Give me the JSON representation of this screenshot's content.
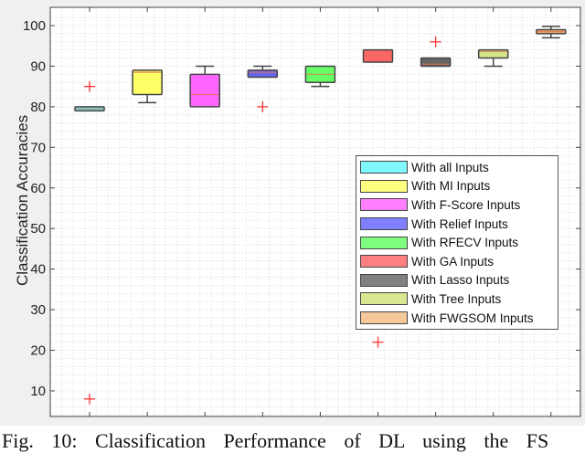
{
  "chart_data": {
    "type": "box",
    "title": "",
    "xlabel": "",
    "ylabel": "Classification Accuracies",
    "ylim": [
      3,
      103
    ],
    "yticks": [
      10,
      20,
      30,
      40,
      50,
      60,
      70,
      80,
      90,
      100
    ],
    "grid": true,
    "minor_grid": true,
    "legend_position": "right-middle",
    "series": [
      {
        "name": "With all Inputs",
        "color": "#66f0ff",
        "q1": 79,
        "median": 79.5,
        "q3": 80,
        "whisker_low": 79,
        "whisker_high": 80,
        "outliers": [
          85,
          8
        ]
      },
      {
        "name": "With MI Inputs",
        "color": "#ffff66",
        "q1": 83,
        "median": 88.5,
        "q3": 89,
        "whisker_low": 81,
        "whisker_high": 89,
        "outliers": []
      },
      {
        "name": "With F-Score Inputs",
        "color": "#ff66ff",
        "q1": 80,
        "median": 83,
        "q3": 88,
        "whisker_low": 80,
        "whisker_high": 90,
        "outliers": []
      },
      {
        "name": "With Relief Inputs",
        "color": "#6666ee",
        "q1": 87.3,
        "median": 88.5,
        "q3": 89,
        "whisker_low": 87.3,
        "whisker_high": 90,
        "outliers": [
          80
        ]
      },
      {
        "name": "With RFECV Inputs",
        "color": "#66ff66",
        "q1": 86,
        "median": 88,
        "q3": 90,
        "whisker_low": 85,
        "whisker_high": 90,
        "outliers": []
      },
      {
        "name": "With GA Inputs",
        "color": "#ff6666",
        "q1": 91,
        "median": 92.6,
        "q3": 94,
        "whisker_low": 91,
        "whisker_high": 94,
        "outliers": [
          22
        ]
      },
      {
        "name": "With Lasso Inputs",
        "color": "#666666",
        "q1": 90,
        "median": 90.5,
        "q3": 92,
        "whisker_low": 90,
        "whisker_high": 92,
        "outliers": [
          96
        ]
      },
      {
        "name": "With Tree Inputs",
        "color": "#d4e88a",
        "q1": 92,
        "median": 93.6,
        "q3": 94,
        "whisker_low": 90,
        "whisker_high": 94,
        "outliers": []
      },
      {
        "name": "With FWGSOM Inputs",
        "color": "#f2b070",
        "q1": 98,
        "median": 98.5,
        "q3": 99,
        "whisker_low": 97,
        "whisker_high": 99.8,
        "outliers": []
      }
    ]
  },
  "caption": "Fig. 10: Classification Performance of DL using the FS",
  "legend_swatch_colors": [
    "#7ff8ff",
    "#ffff80",
    "#ff80ff",
    "#8080ff",
    "#80ff80",
    "#ff8080",
    "#808080",
    "#d8e890",
    "#f5c89a"
  ]
}
